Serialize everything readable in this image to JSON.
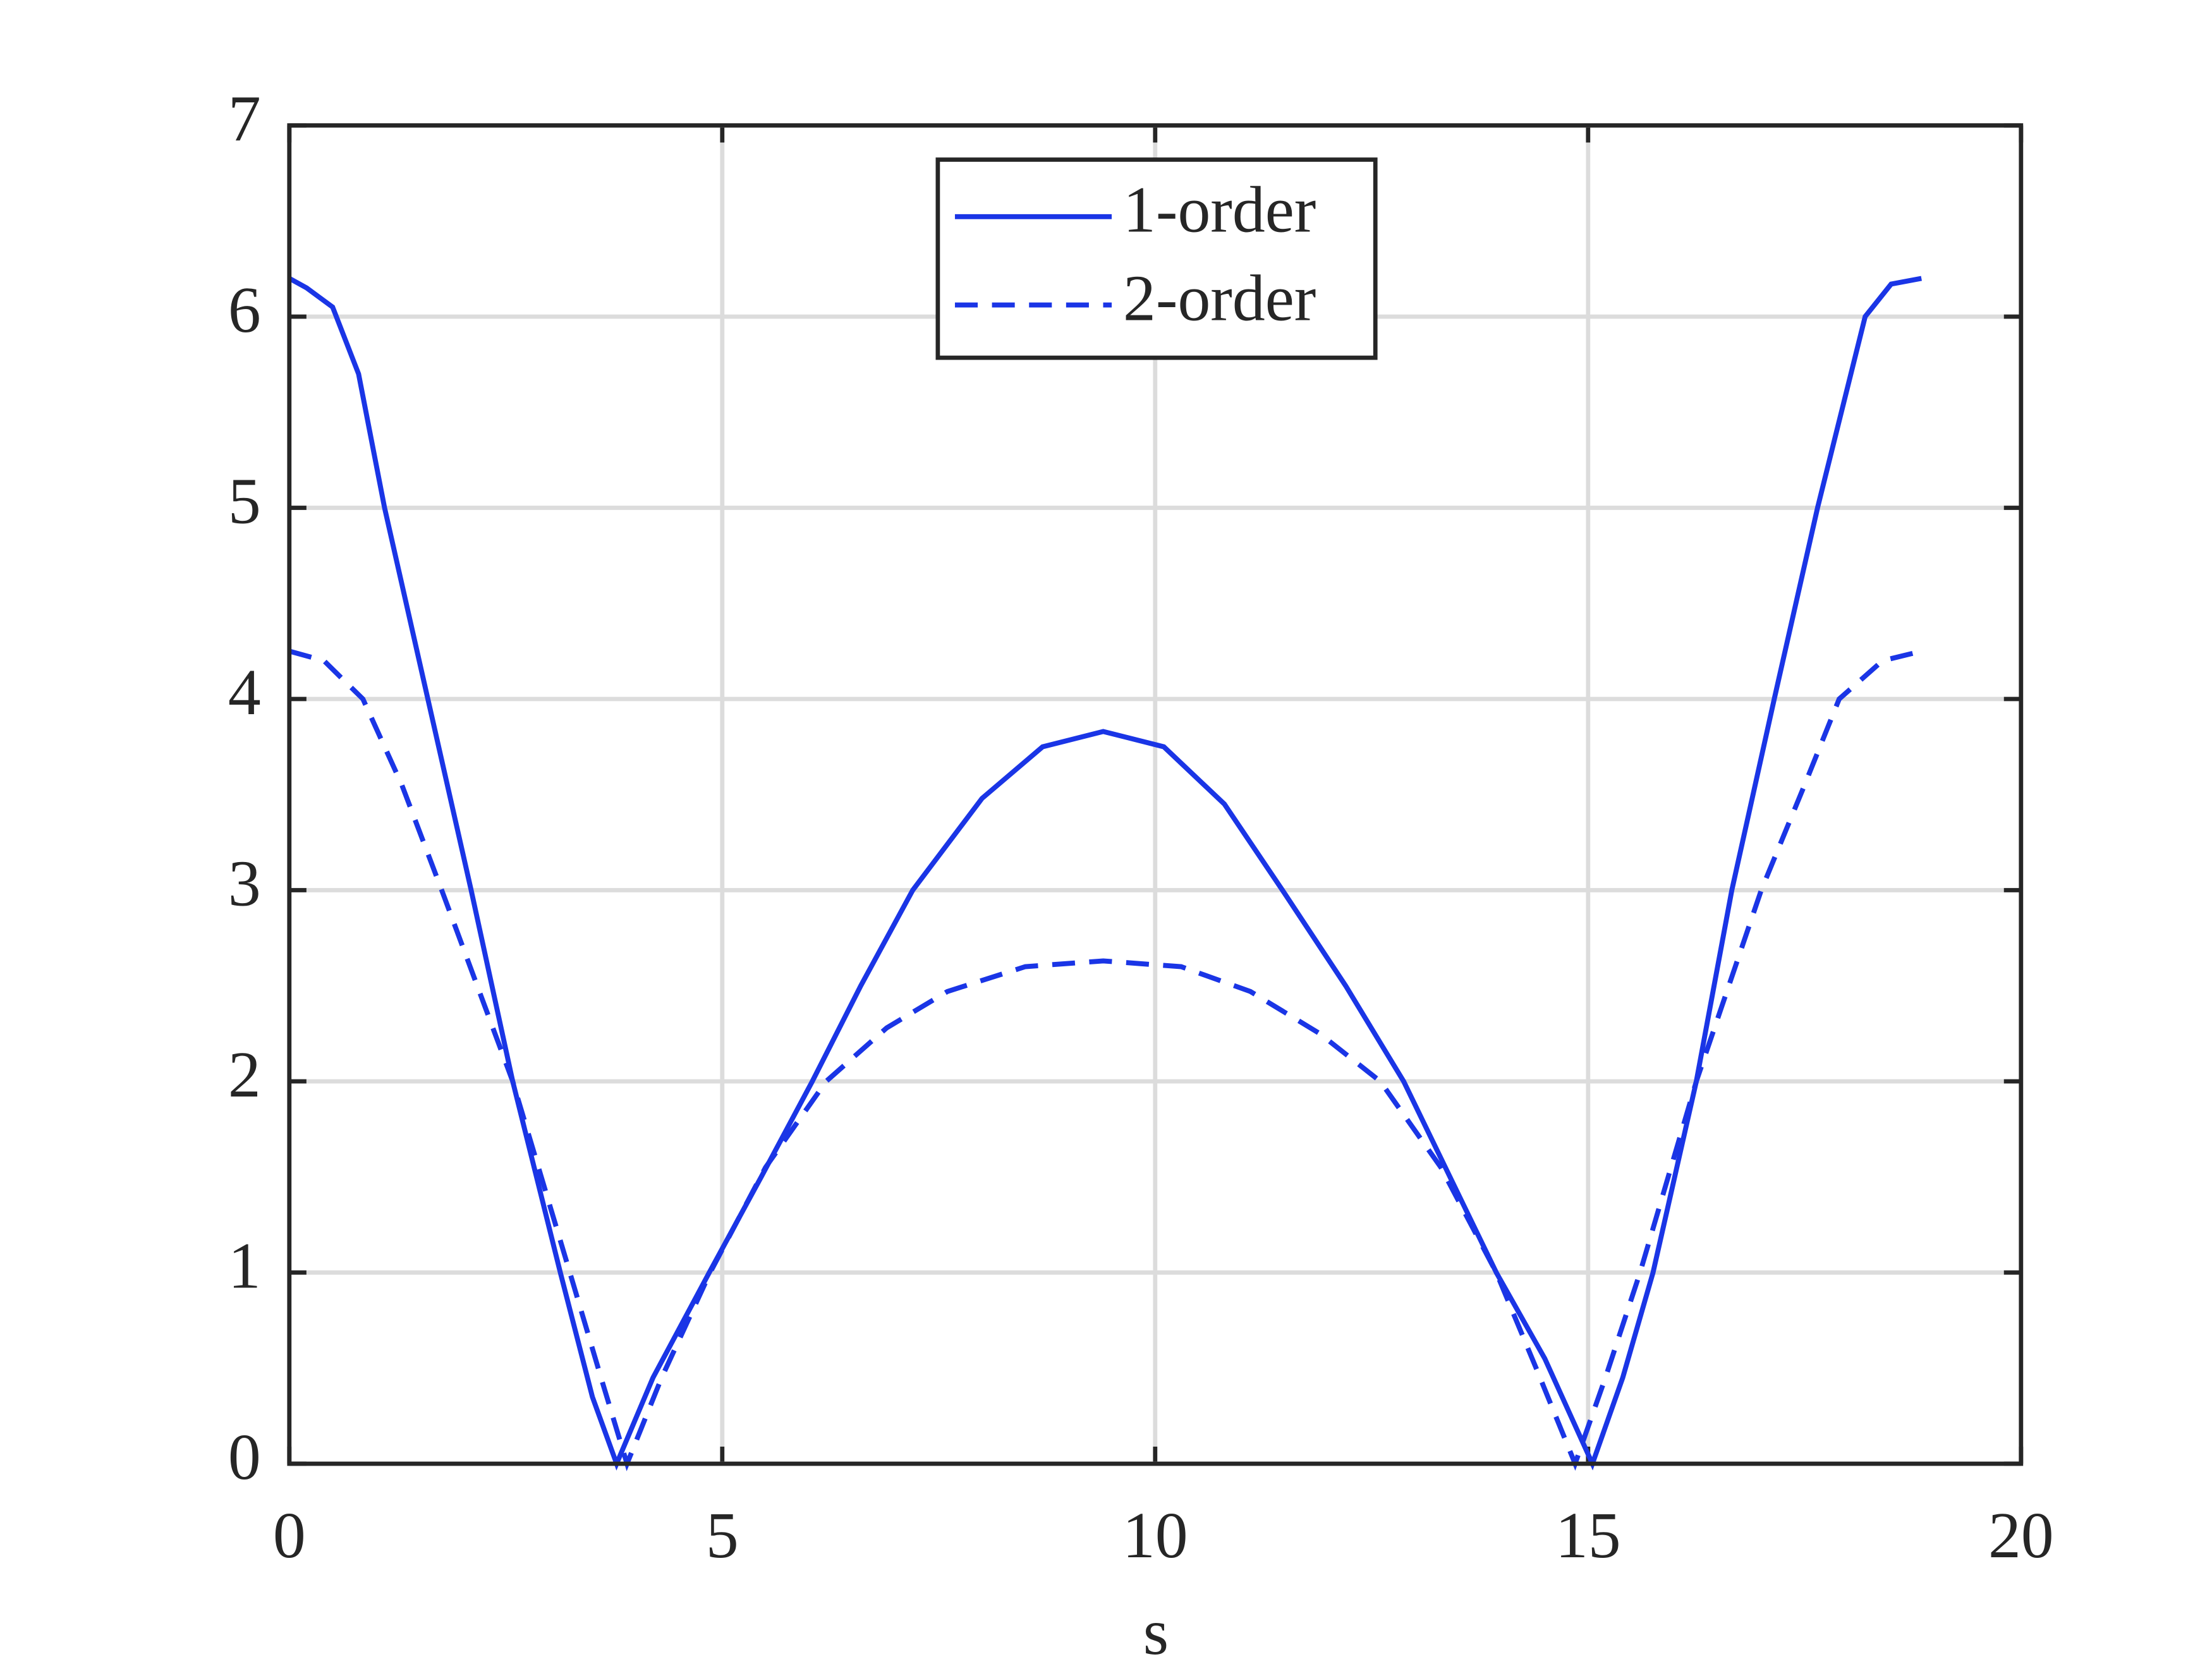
{
  "chart_data": {
    "type": "line",
    "xlabel": "s",
    "xlim": [
      0,
      20
    ],
    "xticks": [
      0,
      5,
      10,
      15,
      20
    ],
    "ylim": [
      0,
      7
    ],
    "yticks": [
      0,
      1,
      2,
      3,
      4,
      5,
      6,
      7
    ],
    "grid": true,
    "legend": "upper center",
    "series": [
      {
        "name": "1-order",
        "color": "#1a35e6",
        "dash": "solid",
        "x": [
          0,
          0.2,
          0.5,
          0.8,
          1.1,
          1.6,
          2.1,
          2.58,
          3.13,
          3.5,
          3.78,
          4.2,
          4.85,
          5.45,
          6.04,
          6.6,
          7.2,
          8.0,
          8.7,
          9.4,
          10.1,
          10.8,
          11.47,
          12.2,
          12.87,
          13.94,
          14.5,
          15.05,
          15.4,
          15.75,
          16.25,
          16.66,
          17.15,
          17.65,
          18.2,
          18.5,
          18.85
        ],
        "values": [
          6.2,
          6.15,
          6.05,
          5.7,
          5.0,
          4.0,
          3.0,
          2.0,
          1.0,
          0.35,
          0.0,
          0.45,
          1.0,
          1.5,
          2.0,
          2.5,
          3.0,
          3.48,
          3.75,
          3.83,
          3.75,
          3.45,
          3.0,
          2.5,
          2.0,
          1.0,
          0.55,
          0.0,
          0.45,
          1.0,
          2.0,
          3.0,
          4.0,
          5.0,
          6.0,
          6.17,
          6.2
        ]
      },
      {
        "name": "2-order",
        "color": "#1a35e6",
        "dash": "dashed",
        "x": [
          0,
          0.4,
          0.85,
          1.3,
          1.76,
          2.58,
          3.24,
          3.6,
          3.9,
          4.3,
          4.86,
          5.5,
          6.2,
          6.9,
          7.6,
          8.5,
          9.4,
          10.3,
          11.1,
          11.9,
          12.6,
          13.3,
          13.94,
          14.4,
          14.85,
          15.2,
          15.6,
          16.25,
          17.0,
          17.5,
          17.9,
          18.4,
          18.85
        ],
        "values": [
          4.25,
          4.2,
          4.0,
          3.55,
          3.0,
          2.0,
          1.0,
          0.45,
          0.0,
          0.45,
          1.0,
          1.55,
          2.0,
          2.28,
          2.47,
          2.6,
          2.63,
          2.6,
          2.47,
          2.25,
          2.0,
          1.55,
          1.0,
          0.5,
          0.0,
          0.45,
          1.0,
          2.0,
          3.0,
          3.55,
          4.0,
          4.2,
          4.25
        ]
      }
    ]
  }
}
